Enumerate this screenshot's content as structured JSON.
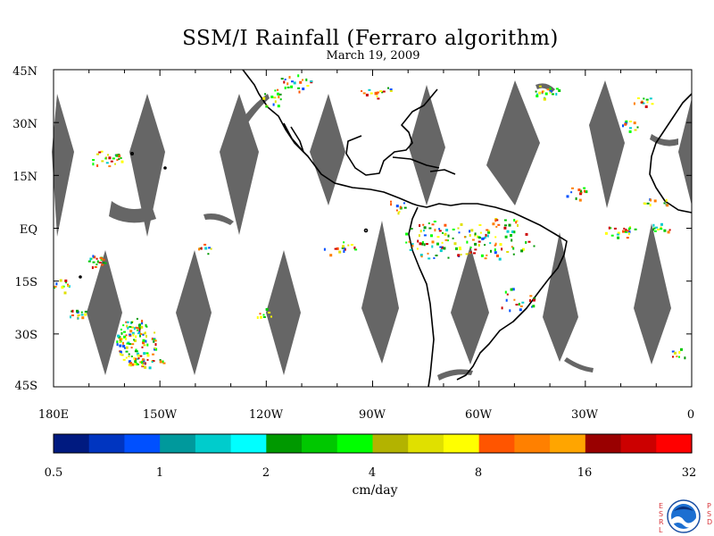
{
  "title": "SSM/I Rainfall (Ferraro algorithm)",
  "subtitle": "March 19, 2009",
  "y_axis": {
    "ticks": [
      "45N",
      "30N",
      "15N",
      "EQ",
      "15S",
      "30S",
      "45S"
    ],
    "values": [
      45,
      30,
      15,
      0,
      -15,
      -30,
      -45
    ]
  },
  "x_axis": {
    "ticks": [
      "180E",
      "150W",
      "120W",
      "90W",
      "60W",
      "30W",
      "0"
    ],
    "values": [
      -180,
      -150,
      -120,
      -90,
      -60,
      -30,
      0
    ]
  },
  "colorbar": {
    "units": "cm/day",
    "tick_labels": [
      "0.5",
      "1",
      "2",
      "4",
      "8",
      "16",
      "32"
    ],
    "colors": [
      "#001a80",
      "#0035c0",
      "#0050ff",
      "#00999c",
      "#00cccc",
      "#00ffff",
      "#009900",
      "#00c800",
      "#00ff00",
      "#b3b300",
      "#e0e000",
      "#ffff00",
      "#ff5500",
      "#ff8000",
      "#ffa500",
      "#990000",
      "#cc0000",
      "#ff0000"
    ]
  },
  "map": {
    "extent": {
      "lon": [
        -180,
        0
      ],
      "lat": [
        -45,
        45
      ]
    },
    "swath_gap_color": "#666666",
    "coastline_color": "#000000"
  },
  "logo": {
    "name": "NOAA",
    "left_letters": "ESRL",
    "right_letters": "PSD"
  }
}
